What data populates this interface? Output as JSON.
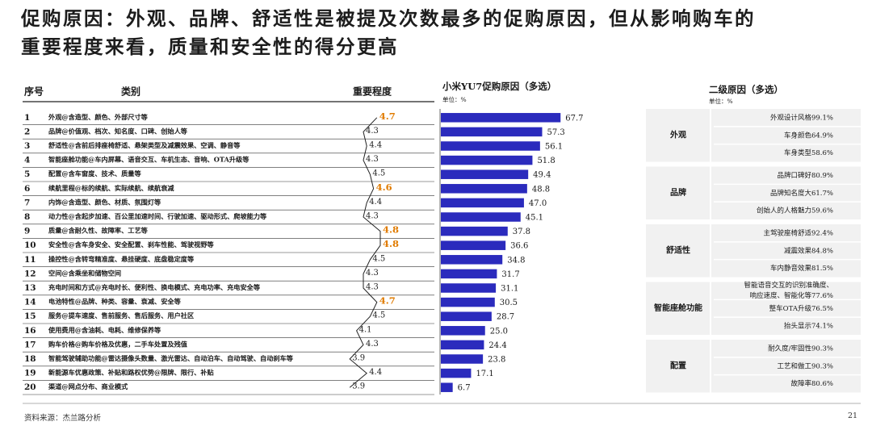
{
  "title_line1": "促购原因：外观、品牌、舒适性是被提及次数最多的促购原因，但从影响购车的",
  "title_line2": "重要程度来看，质量和安全性的得分更高",
  "table_headers": {
    "no": "序号",
    "category": "类别",
    "importance": "重要程度"
  },
  "bar_panel": {
    "title": "小米YU7促购原因（多选）",
    "unit": "单位：%"
  },
  "second_panel": {
    "title": "二级原因（多选）",
    "unit": "单位：%"
  },
  "source": "资料来源：杰兰路分析",
  "page_number": "21",
  "colors": {
    "bar": "#2b2bbd",
    "highlight": "#e07b00",
    "table_line": "#333333",
    "group_bg": "#f1f1f1"
  },
  "chart_data": {
    "type": "bar",
    "orientation": "horizontal",
    "categories": [
      "外观@含造型、颜色、外部尺寸等",
      "品牌@价值观、档次、知名度、口碑、创始人等",
      "舒适性@含前后排座椅舒适、悬架类型及减震效果、空调、静音等",
      "智能座舱功能@车内屏幕、语音交互、车机生态、音响、OTA升级等",
      "配置@含车窗度、技术、质量等",
      "续航里程@标的续航、实际续航、续航衰减",
      "内饰@含造型、颜色、材质、氛围灯等",
      "动力性@含起步加速、百公里加速时间、行驶加速、驱动形式、爬坡能力等",
      "质量@含耐久性、故障率、工艺等",
      "安全性@含车身安全、安全配置、刹车性能、驾驶视野等",
      "操控性@含转弯精准度、悬挂硬度、底盘稳定度等",
      "空间@含乘坐和储物空间",
      "充电时间和方式@充电时长、便利性、换电模式、充电功率、充电安全等",
      "电池特性@品牌、种类、容量、衰减、安全等",
      "服务@提车速度、售前服务、售后服务、用户社区",
      "使用费用@含油耗、电耗、维修保养等",
      "购车价格@购车价格及优惠，二手车处置及残值",
      "智能驾驶辅助功能@雷达摄像头数量、激光雷达、自动泊车、自动驾驶、自动刹车等",
      "新能源车优惠政策、补贴和路权优势@限牌、限行、补贴",
      "渠道@网点分布、商业模式"
    ],
    "row_numbers": [
      "1",
      "2",
      "3",
      "4",
      "5",
      "6",
      "7",
      "8",
      "9",
      "10",
      "11",
      "12",
      "13",
      "14",
      "15",
      "16",
      "17",
      "18",
      "19",
      "20"
    ],
    "importance": [
      "4.7",
      "4.3",
      "4.4",
      "4.3",
      "4.5",
      "4.6",
      "4.4",
      "4.3",
      "4.8",
      "4.8",
      "4.5",
      "4.3",
      "4.3",
      "4.7",
      "4.5",
      "4.1",
      "4.3",
      "3.9",
      "4.4",
      "3.9"
    ],
    "importance_highlight": [
      true,
      false,
      false,
      false,
      false,
      true,
      false,
      false,
      true,
      true,
      false,
      false,
      false,
      true,
      false,
      false,
      false,
      false,
      false,
      false
    ],
    "values": [
      67.7,
      57.3,
      56.1,
      51.8,
      49.4,
      48.8,
      47.0,
      45.1,
      37.8,
      36.6,
      34.8,
      31.7,
      31.1,
      30.5,
      28.7,
      25.0,
      24.4,
      23.8,
      17.1,
      6.7
    ],
    "value_labels": [
      "67.7",
      "57.3",
      "56.1",
      "51.8",
      "49.4",
      "48.8",
      "47.0",
      "45.1",
      "37.8",
      "36.6",
      "34.8",
      "31.7",
      "31.1",
      "30.5",
      "28.7",
      "25.0",
      "24.4",
      "23.8",
      "17.1",
      "6.7"
    ],
    "xlim": [
      0,
      100
    ]
  },
  "secondary_reasons": [
    {
      "group": "外观",
      "items": [
        {
          "label": "外观设计风格",
          "value": "99.1%"
        },
        {
          "label": "车身颜色",
          "value": "64.9%"
        },
        {
          "label": "车身类型",
          "value": "58.6%"
        }
      ]
    },
    {
      "group": "品牌",
      "items": [
        {
          "label": "品牌口碑好",
          "value": "80.9%"
        },
        {
          "label": "品牌知名度大",
          "value": "61.7%"
        },
        {
          "label": "创始人的人格魅力",
          "value": "59.6%"
        }
      ]
    },
    {
      "group": "舒适性",
      "items": [
        {
          "label": "主驾驶座椅舒适",
          "value": "92.4%"
        },
        {
          "label": "减震效果",
          "value": "84.8%"
        },
        {
          "label": "车内静音效果",
          "value": "81.5%"
        }
      ]
    },
    {
      "group": "智能座舱功能",
      "items": [
        {
          "label": "智能语音交互的识别准确度、响应速度、智能化等",
          "value": "77.6%"
        },
        {
          "label": "整车OTA升级",
          "value": "76.5%"
        },
        {
          "label": "抬头显示",
          "value": "74.1%"
        }
      ]
    },
    {
      "group": "配置",
      "items": [
        {
          "label": "耐久度/牢固性",
          "value": "90.3%"
        },
        {
          "label": "工艺和做工",
          "value": "90.3%"
        },
        {
          "label": "故障率",
          "value": "80.6%"
        }
      ]
    }
  ]
}
